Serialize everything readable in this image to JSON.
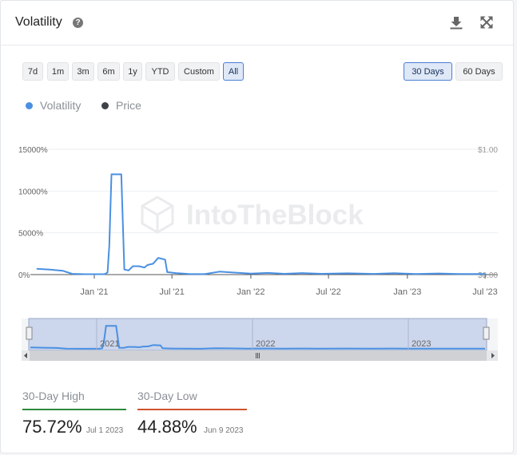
{
  "header": {
    "title": "Volatility",
    "help_icon": "question-icon",
    "download_icon": "download-icon",
    "expand_icon": "expand-icon",
    "help_glyph": "?"
  },
  "ranges": [
    "7d",
    "1m",
    "3m",
    "6m",
    "1y",
    "YTD",
    "Custom",
    "All"
  ],
  "active_range": "All",
  "windows": [
    "30 Days",
    "60 Days"
  ],
  "active_window": "30 Days",
  "legend": [
    {
      "label": "Volatility",
      "color": "#4a90e2"
    },
    {
      "label": "Price",
      "color": "#3d4148"
    }
  ],
  "watermark": "IntoTheBlock",
  "navigator": {
    "year_labels": [
      "2021",
      "2022",
      "2023"
    ]
  },
  "stats": {
    "high": {
      "label": "30-Day High",
      "value": "75.72%",
      "date": "Jul 1 2023",
      "color": "#2e8b3a"
    },
    "low": {
      "label": "30-Day Low",
      "value": "44.88%",
      "date": "Jun 9 2023",
      "color": "#d0532f"
    }
  },
  "chart_data": {
    "type": "line",
    "title": "",
    "y_left": {
      "ticks": [
        "15000%",
        "10000%",
        "5000%",
        "0%"
      ],
      "range": [
        0,
        15000
      ],
      "unit": "%"
    },
    "y_right": {
      "ticks": [
        "$1.00",
        "$0.00"
      ],
      "range": [
        0,
        1
      ]
    },
    "x_ticks": [
      "Jan '21",
      "Jul '21",
      "Jan '22",
      "Jul '22",
      "Jan '23",
      "Jul '23"
    ],
    "x_tick_dates": [
      "2021-01-01",
      "2021-07-01",
      "2022-01-01",
      "2022-07-01",
      "2023-01-01",
      "2023-07-01"
    ],
    "grid": true,
    "series": [
      {
        "name": "Volatility",
        "color": "#4a90e2",
        "points": [
          [
            "2020-08-20",
            700
          ],
          [
            "2020-09-20",
            600
          ],
          [
            "2020-10-20",
            450
          ],
          [
            "2020-11-10",
            100
          ],
          [
            "2020-12-10",
            50
          ],
          [
            "2021-01-01",
            50
          ],
          [
            "2021-01-25",
            50
          ],
          [
            "2021-02-01",
            250
          ],
          [
            "2021-02-05",
            3500
          ],
          [
            "2021-02-10",
            12000
          ],
          [
            "2021-03-05",
            12000
          ],
          [
            "2021-03-12",
            600
          ],
          [
            "2021-03-22",
            500
          ],
          [
            "2021-04-01",
            1000
          ],
          [
            "2021-04-15",
            1000
          ],
          [
            "2021-04-28",
            850
          ],
          [
            "2021-05-05",
            1150
          ],
          [
            "2021-05-18",
            1300
          ],
          [
            "2021-05-30",
            2000
          ],
          [
            "2021-06-15",
            1800
          ],
          [
            "2021-06-20",
            300
          ],
          [
            "2021-07-10",
            180
          ],
          [
            "2021-08-10",
            80
          ],
          [
            "2021-09-15",
            60
          ],
          [
            "2021-10-20",
            350
          ],
          [
            "2021-11-20",
            250
          ],
          [
            "2022-01-01",
            120
          ],
          [
            "2022-02-10",
            200
          ],
          [
            "2022-03-20",
            100
          ],
          [
            "2022-05-01",
            180
          ],
          [
            "2022-06-15",
            100
          ],
          [
            "2022-08-15",
            150
          ],
          [
            "2022-10-15",
            90
          ],
          [
            "2022-12-01",
            160
          ],
          [
            "2023-01-20",
            80
          ],
          [
            "2023-03-15",
            130
          ],
          [
            "2023-05-01",
            70
          ],
          [
            "2023-07-01",
            76
          ]
        ]
      },
      {
        "name": "Price",
        "color": "#3d4148",
        "points": []
      }
    ]
  }
}
